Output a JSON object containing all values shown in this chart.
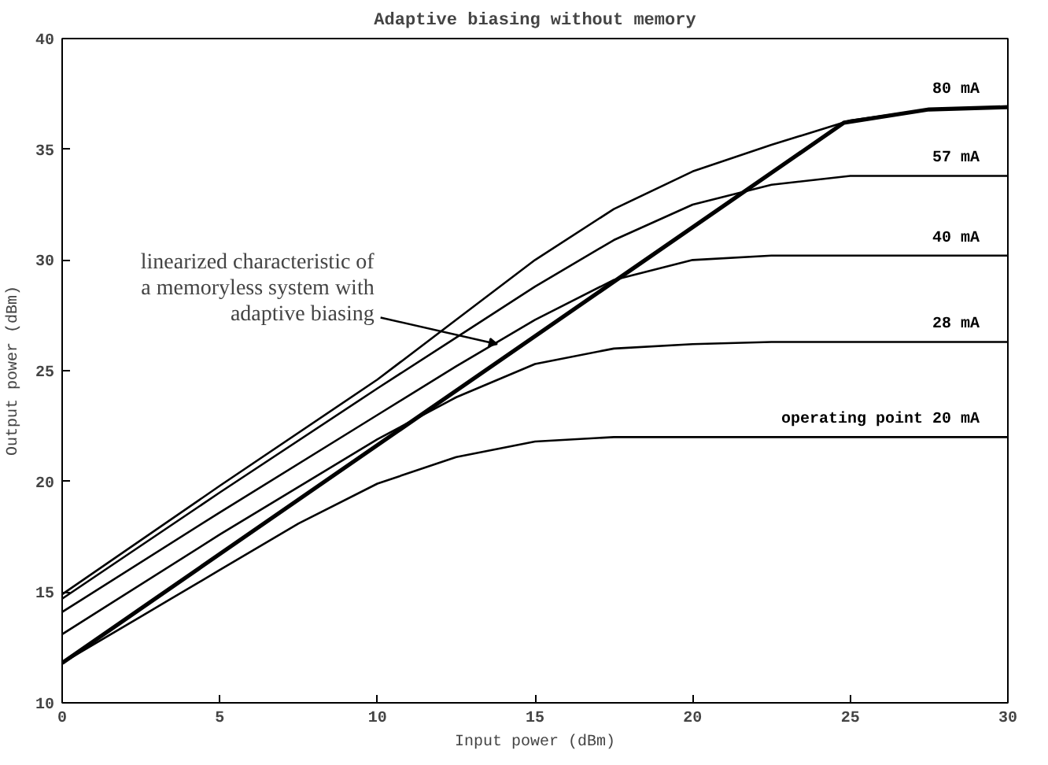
{
  "chart_data": {
    "type": "line",
    "title": "Adaptive biasing without memory",
    "xlabel": "Input power (dBm)",
    "ylabel": "Output power (dBm)",
    "xlim": [
      0,
      30
    ],
    "ylim": [
      10,
      40
    ],
    "xticks": [
      0,
      5,
      10,
      15,
      20,
      25,
      30
    ],
    "yticks": [
      10,
      15,
      20,
      25,
      30,
      35,
      40
    ],
    "grid": false,
    "marker": "none",
    "line_style": "solid",
    "series": [
      {
        "name": "80 mA",
        "color": "#000000",
        "x": [
          0,
          5,
          10,
          12.5,
          15,
          17.5,
          20,
          22.5,
          25,
          27.5,
          30
        ],
        "values": [
          14.9,
          19.8,
          24.6,
          27.3,
          30.0,
          32.3,
          34.0,
          35.2,
          36.3,
          36.8,
          36.9
        ]
      },
      {
        "name": "57 mA",
        "color": "#000000",
        "x": [
          0,
          5,
          10,
          12.5,
          15,
          17.5,
          20,
          22.5,
          25,
          27.5,
          30
        ],
        "values": [
          14.7,
          19.5,
          24.2,
          26.5,
          28.8,
          30.9,
          32.5,
          33.4,
          33.8,
          33.8,
          33.8
        ]
      },
      {
        "name": "40 mA",
        "color": "#000000",
        "x": [
          0,
          5,
          10,
          12.5,
          15,
          17.5,
          20,
          22.5,
          25,
          27.5,
          30
        ],
        "values": [
          14.1,
          18.6,
          23.0,
          25.2,
          27.3,
          29.1,
          30.0,
          30.2,
          30.2,
          30.2,
          30.2
        ]
      },
      {
        "name": "28 mA",
        "color": "#000000",
        "x": [
          0,
          5,
          10,
          12.5,
          15,
          17.5,
          20,
          22.5,
          25,
          27.5,
          30
        ],
        "values": [
          13.1,
          17.6,
          21.9,
          23.8,
          25.3,
          26.0,
          26.2,
          26.3,
          26.3,
          26.3,
          26.3
        ]
      },
      {
        "name": "operating point 20 mA",
        "color": "#000000",
        "x": [
          0,
          2.5,
          5,
          7.5,
          10,
          12.5,
          15,
          17.5,
          20,
          25,
          30
        ],
        "values": [
          11.8,
          13.9,
          16.0,
          18.1,
          19.9,
          21.1,
          21.8,
          22.0,
          22.0,
          22.0,
          22.0
        ]
      },
      {
        "color": "#000000",
        "x": [
          0,
          24.8,
          27.5,
          30
        ],
        "values": [
          11.8,
          36.2,
          36.8,
          36.9
        ]
      }
    ],
    "annotations": [
      {
        "text": "linearized characteristic of\na memoryless system with\nadaptive biasing",
        "x": 13.8,
        "y": 26.2
      }
    ]
  }
}
